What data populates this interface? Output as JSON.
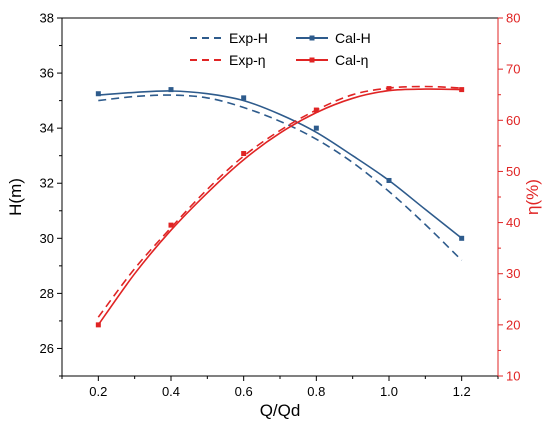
{
  "chart_data": {
    "type": "line",
    "title": "",
    "xlabel": "Q/Qd",
    "ylabel_left": "H(m)",
    "ylabel_right": "η(%)",
    "xlim": [
      0.1,
      1.3
    ],
    "ylim_left": [
      25,
      38
    ],
    "ylim_right": [
      10,
      80
    ],
    "x_ticks": [
      "0.2",
      "0.4",
      "0.6",
      "0.8",
      "1.0",
      "1.2"
    ],
    "y_left_ticks": [
      "26",
      "28",
      "30",
      "32",
      "34",
      "36",
      "38"
    ],
    "y_right_ticks": [
      "10",
      "20",
      "30",
      "40",
      "50",
      "60",
      "70",
      "80"
    ],
    "grid": false,
    "legend_placement": "top-center",
    "colors": {
      "H": "#2e5b8c",
      "eta": "#e02424",
      "axis": "#000000"
    },
    "series": [
      {
        "name": "Exp-H",
        "axis": "left",
        "style": "dashed",
        "color": "#2e5b8c",
        "x": [
          0.2,
          0.3,
          0.4,
          0.5,
          0.6,
          0.7,
          0.8,
          0.9,
          1.0,
          1.1,
          1.2
        ],
        "y": [
          35.0,
          35.15,
          35.2,
          35.1,
          34.75,
          34.25,
          33.6,
          32.75,
          31.7,
          30.5,
          29.2
        ]
      },
      {
        "name": "Cal-H",
        "axis": "left",
        "style": "solid",
        "color": "#2e5b8c",
        "x": [
          0.2,
          0.3,
          0.4,
          0.5,
          0.6,
          0.7,
          0.8,
          0.9,
          1.0,
          1.1,
          1.2
        ],
        "y": [
          35.2,
          35.3,
          35.35,
          35.25,
          35.0,
          34.5,
          33.85,
          33.0,
          32.1,
          31.05,
          30.0
        ],
        "markers": {
          "x": [
            0.2,
            0.4,
            0.6,
            0.8,
            1.0,
            1.2
          ],
          "y": [
            35.25,
            35.4,
            35.1,
            34.0,
            32.1,
            30.0
          ]
        }
      },
      {
        "name": "Exp-η",
        "axis": "right",
        "style": "dashed",
        "color": "#e02424",
        "x": [
          0.2,
          0.3,
          0.4,
          0.5,
          0.6,
          0.7,
          0.8,
          0.9,
          1.0,
          1.1,
          1.2
        ],
        "y": [
          21.5,
          31.0,
          39.0,
          46.5,
          53.0,
          58.0,
          62.0,
          65.0,
          66.3,
          66.6,
          66.3
        ]
      },
      {
        "name": "Cal-η",
        "axis": "right",
        "style": "solid",
        "color": "#e02424",
        "x": [
          0.2,
          0.3,
          0.4,
          0.5,
          0.6,
          0.7,
          0.8,
          0.9,
          1.0,
          1.1,
          1.2
        ],
        "y": [
          20.0,
          30.0,
          38.5,
          45.8,
          52.3,
          57.5,
          61.5,
          64.3,
          65.8,
          66.1,
          66.0
        ],
        "markers": {
          "x": [
            0.2,
            0.4,
            0.6,
            0.8,
            1.0,
            1.2
          ],
          "y": [
            20.0,
            39.5,
            53.5,
            62.0,
            66.2,
            66.0
          ]
        }
      }
    ]
  }
}
